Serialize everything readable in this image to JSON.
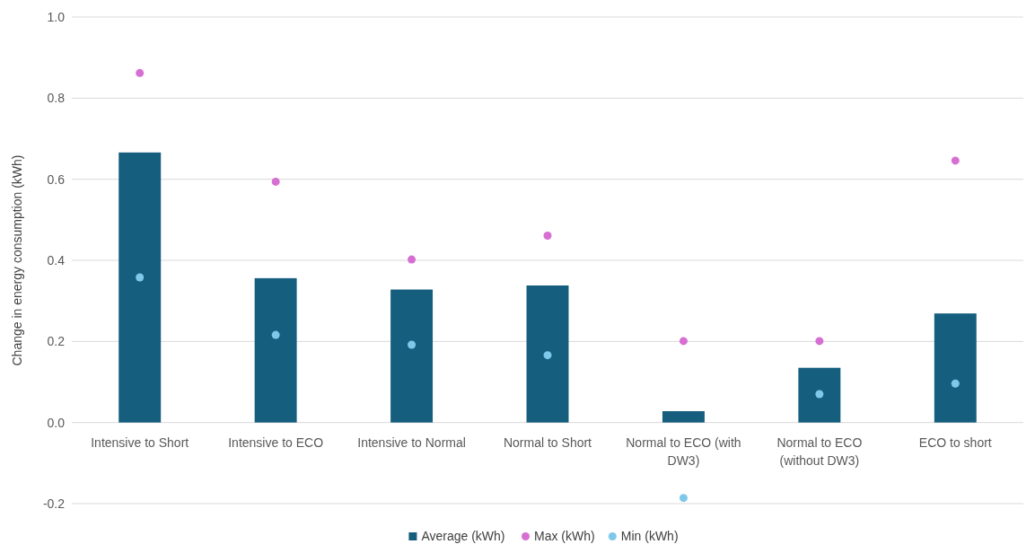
{
  "chart_data": {
    "type": "bar",
    "ylabel": "Change in energy consumption (kWh)",
    "categories": [
      "Intensive to Short",
      "Intensive to ECO",
      "Intensive to Normal",
      "Normal to Short",
      "Normal to ECO (with DW3)",
      "Normal to ECO (without DW3)",
      "ECO to short"
    ],
    "series": [
      {
        "name": "Average (kWh)",
        "color": "#155e7e",
        "values": [
          0.666,
          0.356,
          0.328,
          0.338,
          0.028,
          0.135,
          0.269
        ]
      },
      {
        "name": "Max (kWh)",
        "type": "scatter",
        "color": "#d76fd3",
        "values": [
          0.862,
          0.594,
          0.402,
          0.461,
          0.201,
          0.201,
          0.646
        ]
      },
      {
        "name": "Min (kWh)",
        "type": "scatter",
        "color": "#7ec8e9",
        "values": [
          0.358,
          0.216,
          0.192,
          0.166,
          -0.186,
          0.07,
          0.096
        ]
      }
    ],
    "ylim": [
      -0.2,
      1.0
    ],
    "yticks": [
      {
        "value": -0.2,
        "label": "-0.2"
      },
      {
        "value": 0,
        "label": "0.0"
      },
      {
        "value": 0.2,
        "label": "0.2"
      },
      {
        "value": 0.4,
        "label": "0.4"
      },
      {
        "value": 0.6,
        "label": "0.6"
      },
      {
        "value": 0.8,
        "label": "0.8"
      },
      {
        "value": 1.0,
        "label": "1.0"
      }
    ],
    "grid": "y",
    "legend": "bottom",
    "marker": "circle"
  }
}
